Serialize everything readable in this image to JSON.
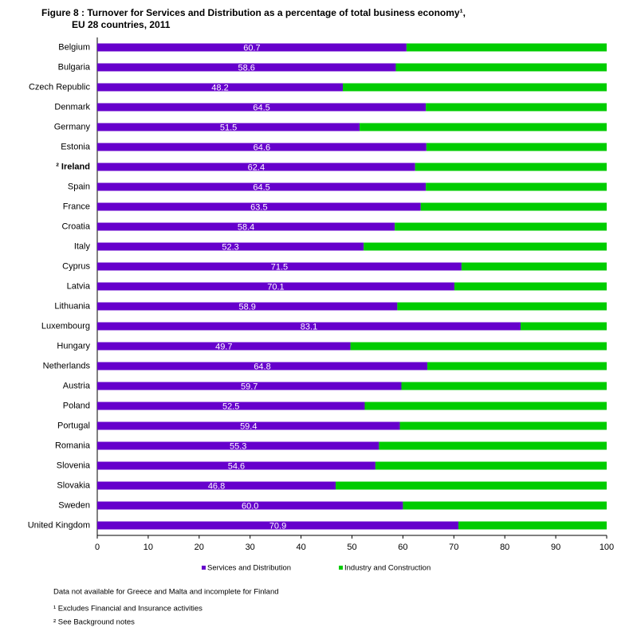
{
  "chart_data": {
    "type": "stacked-bar-horizontal",
    "title": [
      "Figure 8 : Turnover for Services and Distribution as a percentage of total business economy¹,",
      "EU 28 countries,  2011"
    ],
    "categories": [
      "Belgium",
      "Bulgaria",
      "Czech Republic",
      "Denmark",
      "Germany",
      "Estonia",
      "² Ireland",
      "Spain",
      "France",
      "Croatia",
      "Italy",
      "Cyprus",
      "Latvia",
      "Lithuania",
      "Luxembourg",
      "Hungary",
      "Netherlands",
      "Austria",
      "Poland",
      "Portugal",
      "Romania",
      "Slovenia",
      "Slovakia",
      "Sweden",
      "United Kingdom"
    ],
    "bold_categories": [
      6
    ],
    "series": [
      {
        "name": "Services and Distribution",
        "color": "#6600cc",
        "values": [
          60.7,
          58.6,
          48.2,
          64.5,
          51.5,
          64.6,
          62.4,
          64.5,
          63.5,
          58.4,
          52.3,
          71.5,
          70.1,
          58.9,
          83.1,
          49.7,
          64.8,
          59.7,
          52.5,
          59.4,
          55.3,
          54.6,
          46.8,
          60,
          70.9
        ],
        "value_labels": [
          "60.7",
          "58.6",
          "48.2",
          "64.5",
          "51.5",
          "64.6",
          "62.4",
          "64.5",
          "63.5",
          "58.4",
          "52.3",
          "71.5",
          "70.1",
          "58.9",
          "83.1",
          "49.7",
          "64.8",
          "59.7",
          "52.5",
          "59.4",
          "55.3",
          "54.6",
          "46.8",
          "60.0",
          "70.9"
        ]
      },
      {
        "name": "Industry and Construction",
        "color": "#00cc00",
        "values": [
          39.3,
          41.4,
          51.8,
          35.5,
          48.5,
          35.4,
          37.6,
          35.5,
          36.5,
          41.6,
          47.7,
          28.5,
          29.9,
          41.1,
          16.9,
          50.3,
          35.2,
          40.3,
          47.5,
          40.6,
          44.7,
          45.4,
          53.2,
          40,
          29.1
        ]
      }
    ],
    "xlim": [
      0,
      100
    ],
    "xticks": [
      0,
      10,
      20,
      30,
      40,
      50,
      60,
      70,
      80,
      90,
      100
    ],
    "notes": [
      "Data not available for Greece and Malta and incomplete for Finland",
      "¹ Excludes Financial and Insurance activities",
      "² See Background notes"
    ]
  }
}
